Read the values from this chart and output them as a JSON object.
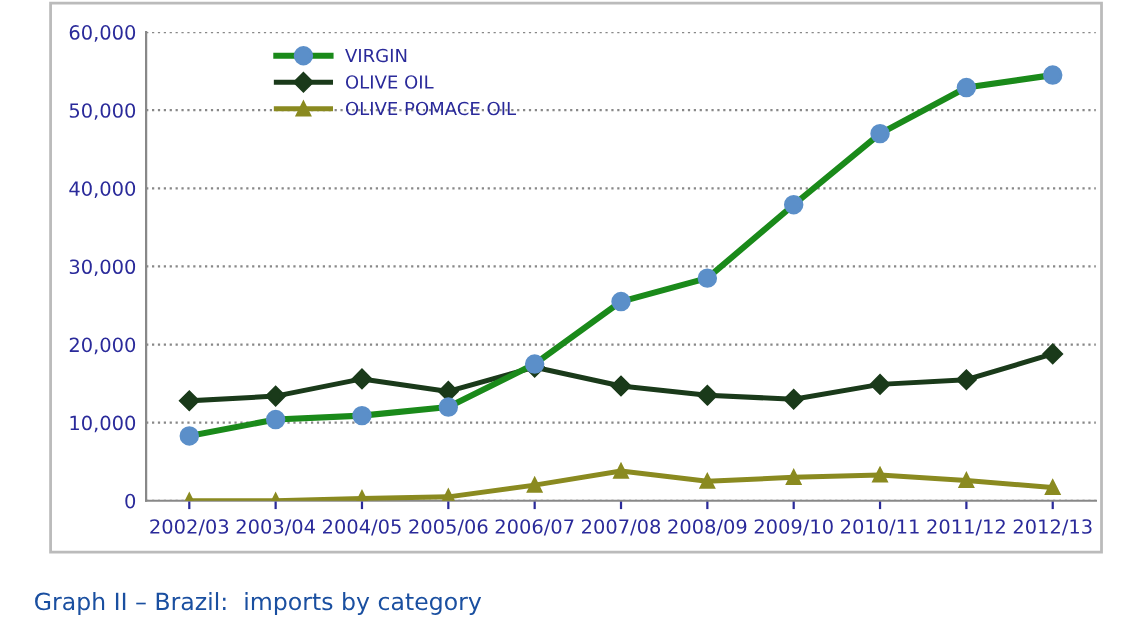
{
  "chart_data": {
    "type": "line",
    "categories": [
      "2002/03",
      "2003/04",
      "2004/05",
      "2005/06",
      "2006/07",
      "2007/08",
      "2008/09",
      "2009/10",
      "2010/11",
      "2011/12",
      "2012/13"
    ],
    "series": [
      {
        "name": "VIRGIN",
        "color": "#1a8a1a",
        "marker": "circle",
        "values": [
          8300,
          10400,
          10900,
          12000,
          17500,
          25500,
          28500,
          37900,
          47000,
          52900,
          54500
        ]
      },
      {
        "name": "OLIVE OIL",
        "color": "#1a3a1a",
        "marker": "diamond",
        "values": [
          12800,
          13400,
          15600,
          14000,
          17100,
          14700,
          13500,
          13000,
          14900,
          15500,
          18800
        ]
      },
      {
        "name": "OLIVE POMACE OIL",
        "color": "#8a8a20",
        "marker": "triangle",
        "values": [
          0,
          0,
          300,
          500,
          2000,
          3800,
          2500,
          3000,
          3300,
          2600,
          1700
        ]
      }
    ],
    "ylim": [
      0,
      60000
    ],
    "yticks": [
      {
        "value": 0,
        "label": "0"
      },
      {
        "value": 10000,
        "label": "10,000"
      },
      {
        "value": 20000,
        "label": "20,000"
      },
      {
        "value": 30000,
        "label": "30,000"
      },
      {
        "value": 40000,
        "label": "40,000"
      },
      {
        "value": 50000,
        "label": "50,000"
      },
      {
        "value": 60000,
        "label": "60,000"
      }
    ],
    "grid": "y",
    "legend": "top left",
    "annotations": [
      "Graph II – Brazil:  imports by category"
    ]
  }
}
